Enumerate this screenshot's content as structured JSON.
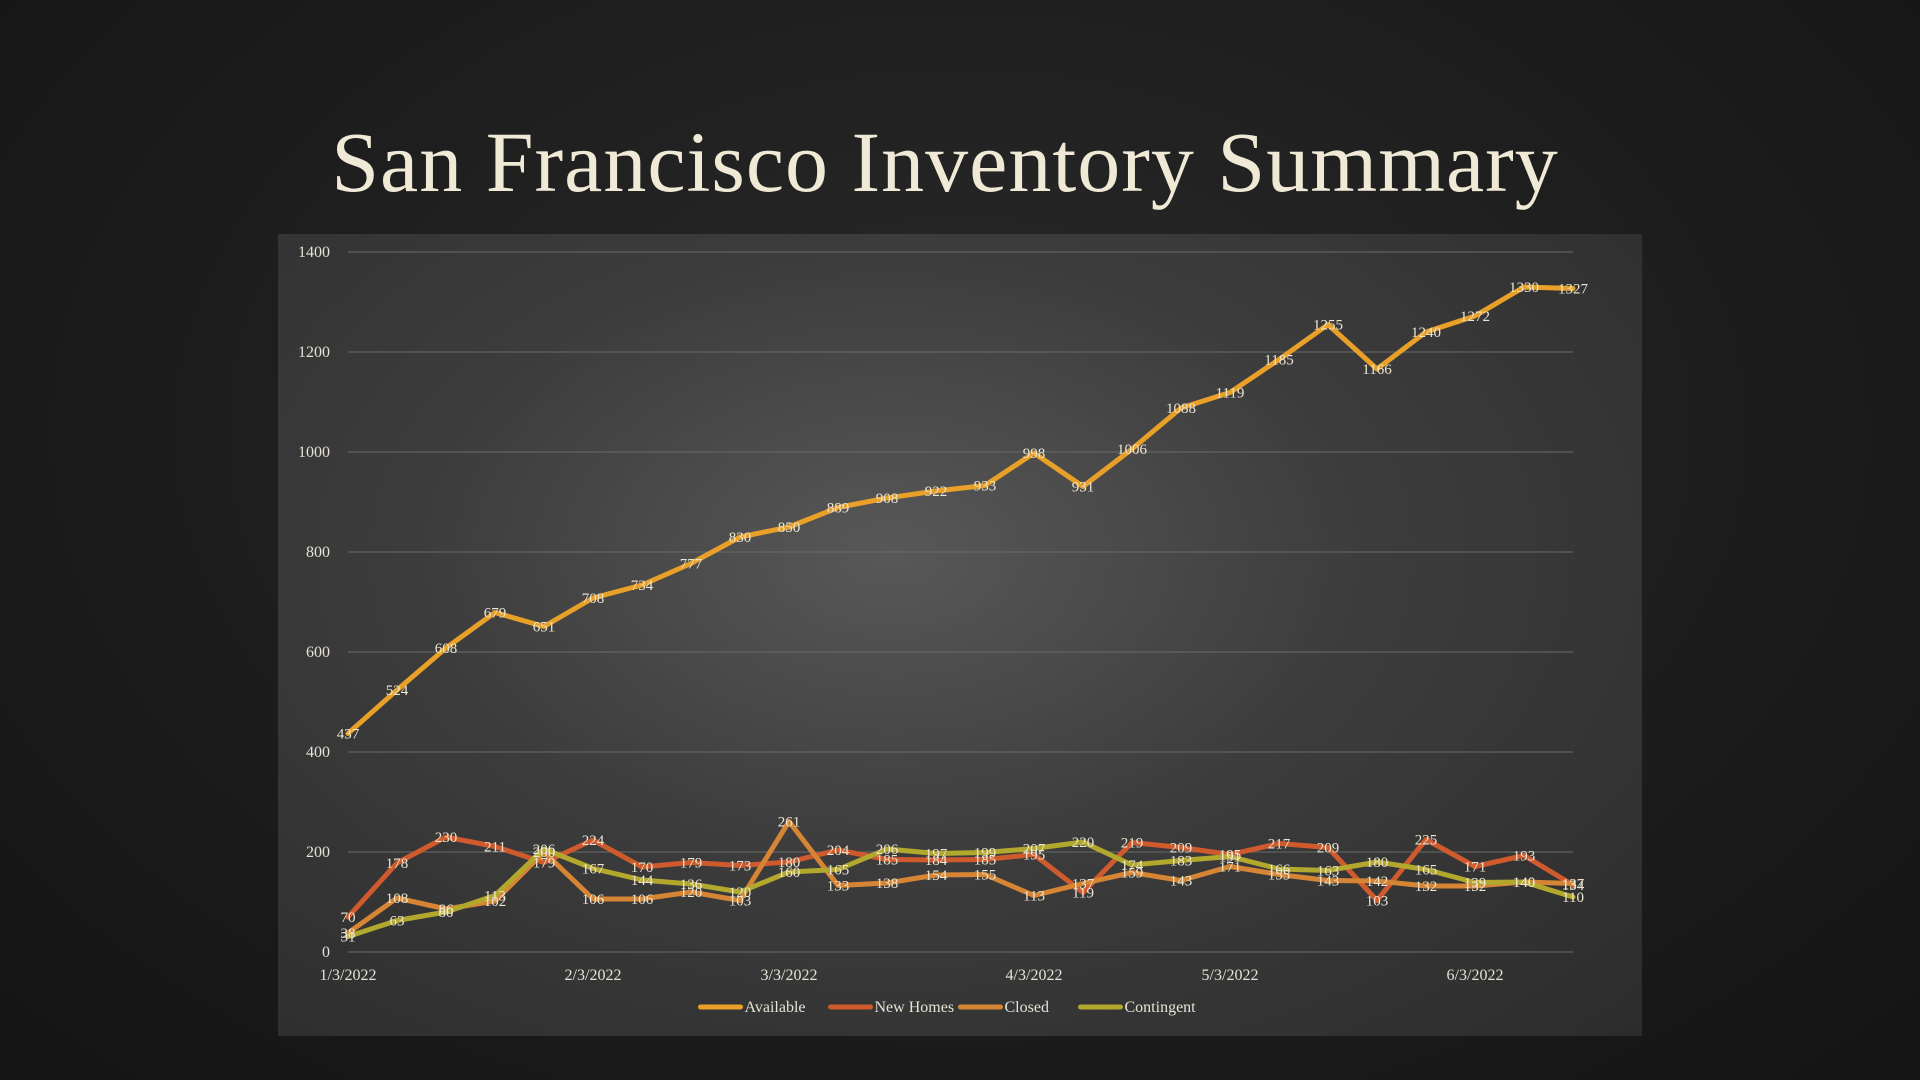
{
  "slide": {
    "title": "San Francisco Inventory Summary"
  },
  "chart_data": {
    "type": "line",
    "title": "",
    "xlabel": "",
    "ylabel": "",
    "ylim": [
      0,
      1400
    ],
    "yticks": [
      0,
      200,
      400,
      600,
      800,
      1000,
      1200,
      1400
    ],
    "x_tick_labels": [
      "1/3/2022",
      "2/3/2022",
      "3/3/2022",
      "4/3/2022",
      "5/3/2022",
      "6/3/2022"
    ],
    "x_tick_positions": [
      0,
      5,
      9,
      14,
      18,
      23
    ],
    "grid": true,
    "legend_position": "bottom",
    "x_count": 26,
    "series": [
      {
        "name": "Available",
        "color": "#e8a028",
        "values": [
          437,
          524,
          608,
          679,
          651,
          708,
          734,
          777,
          830,
          850,
          889,
          908,
          922,
          933,
          998,
          931,
          1006,
          1088,
          1119,
          1185,
          1255,
          1166,
          1240,
          1272,
          1330,
          1327
        ]
      },
      {
        "name": "New Homes",
        "color": "#cf5a2e",
        "values": [
          70,
          178,
          230,
          211,
          179,
          224,
          170,
          179,
          173,
          180,
          204,
          185,
          184,
          185,
          195,
          119,
          219,
          209,
          195,
          217,
          209,
          103,
          225,
          171,
          193,
          134
        ]
      },
      {
        "name": "Closed",
        "color": "#d68535",
        "values": [
          38,
          108,
          86,
          102,
          200,
          106,
          106,
          120,
          103,
          261,
          133,
          138,
          154,
          155,
          113,
          137,
          159,
          143,
          171,
          155,
          143,
          142,
          132,
          132,
          140,
          137
        ]
      },
      {
        "name": "Contingent",
        "color": "#b3a82e",
        "values": [
          31,
          63,
          80,
          113,
          206,
          167,
          144,
          136,
          120,
          160,
          165,
          206,
          197,
          199,
          207,
          220,
          174,
          183,
          191,
          166,
          163,
          180,
          165,
          139,
          140,
          110
        ]
      }
    ]
  }
}
